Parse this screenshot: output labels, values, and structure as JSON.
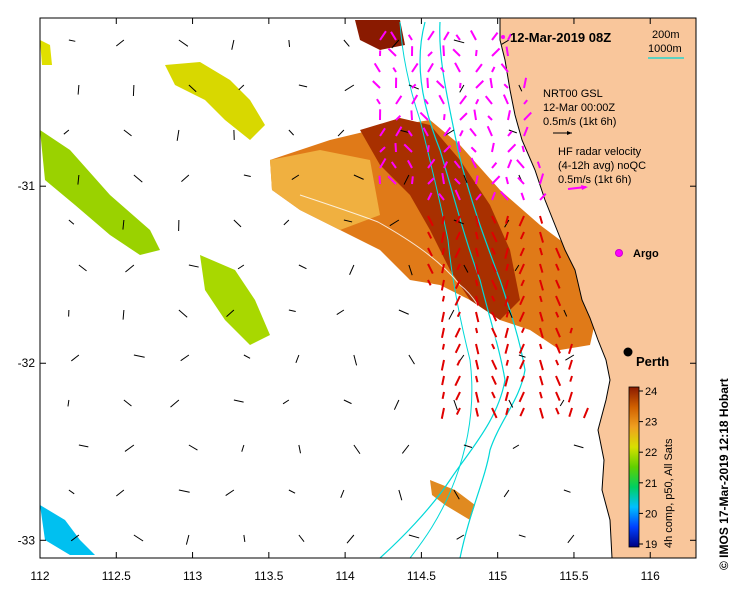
{
  "title": "12-Mar-2019 08Z",
  "bathymetry_legend": {
    "line1": "200m",
    "line2": "1000m",
    "color": "#00e5e5"
  },
  "model_legend": {
    "line1": "NRT00 GSL",
    "line2": "12-Mar 00:00Z",
    "line3": "0.5m/s (1kt 6h)",
    "arrow_color": "#000000"
  },
  "radar_legend": {
    "line1": "HF radar velocity",
    "line2": "(4-12h avg) noQC",
    "line3": "0.5m/s (1kt 6h)",
    "arrow_color": "#ff00ff"
  },
  "argo_label": "Argo",
  "city_label": "Perth",
  "colorbar": {
    "ticks": [
      "24",
      "23",
      "22",
      "21",
      "20",
      "19"
    ],
    "caption": "4h comp, p50, All Sats",
    "stops": [
      "#000080",
      "#0040ff",
      "#00c0ff",
      "#00d060",
      "#60d000",
      "#d8e000",
      "#f0a020",
      "#d06000",
      "#8a1a00"
    ]
  },
  "x_axis": {
    "ticks": [
      "112",
      "112.5",
      "113",
      "113.5",
      "114",
      "114.5",
      "115",
      "115.5",
      "116"
    ],
    "range": [
      112,
      116.3
    ]
  },
  "y_axis": {
    "ticks": [
      "-31",
      "-32",
      "-33"
    ],
    "range": [
      -33.1,
      -30.05
    ]
  },
  "credit": "© IMOS 17-Mar-2019 12:18 Hobart",
  "colors": {
    "land": "#f9c69b",
    "coast": "#000000",
    "model_arrow": "#000000",
    "radar_arrow": "#ff00ff",
    "radar_arrow_red": "#e00000"
  }
}
